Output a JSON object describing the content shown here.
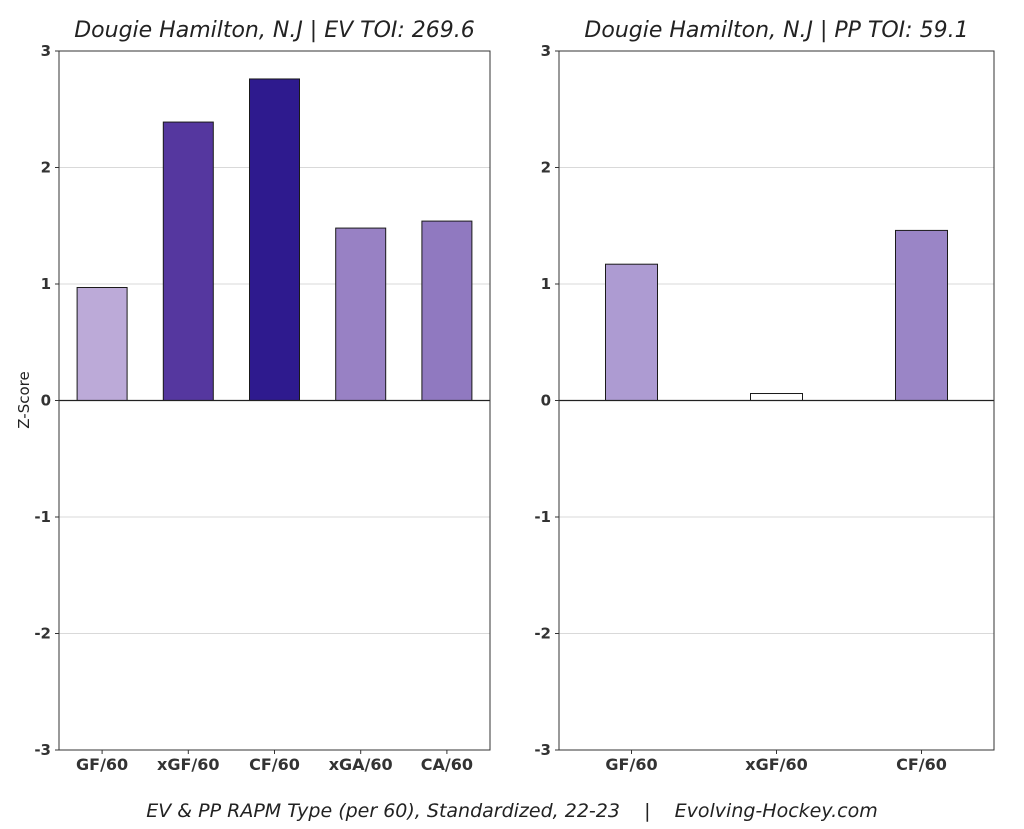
{
  "chart_data": [
    {
      "type": "bar",
      "title": "Dougie Hamilton, N.J  |  EV TOI: 269.6",
      "ylabel": "Z-Score",
      "ylim": [
        -3,
        3
      ],
      "yticks": [
        "-3",
        "-2",
        "-1",
        "0",
        "1",
        "2",
        "3"
      ],
      "grid": true,
      "categories": [
        "GF/60",
        "xGF/60",
        "CF/60",
        "xGA/60",
        "CA/60"
      ],
      "values": [
        0.97,
        2.39,
        2.76,
        1.48,
        1.54
      ],
      "colors": [
        "#bcaad8",
        "#55379f",
        "#2e1a8e",
        "#9881c4",
        "#9079c0"
      ]
    },
    {
      "type": "bar",
      "title": "Dougie Hamilton, N.J  |  PP TOI: 59.1",
      "ylim": [
        -3,
        3
      ],
      "yticks": [
        "-3",
        "-2",
        "-1",
        "0",
        "1",
        "2",
        "3"
      ],
      "grid": true,
      "categories": [
        "GF/60",
        "xGF/60",
        "CF/60"
      ],
      "values": [
        1.17,
        0.06,
        1.46
      ],
      "colors": [
        "#ad9bd2",
        "#ffffff",
        "#9a85c6"
      ]
    }
  ],
  "caption": "EV & PP RAPM Type (per 60), Standardized, 22-23    |    Evolving-Hockey.com"
}
